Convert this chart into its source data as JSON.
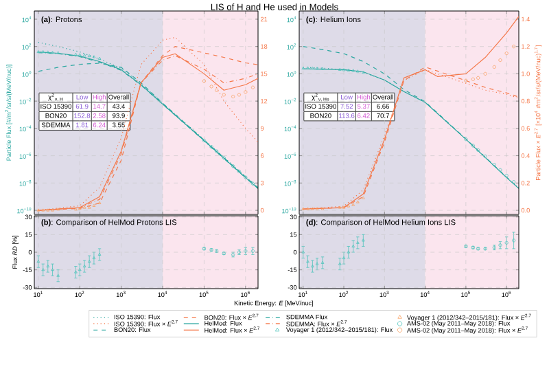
{
  "chart_data": [
    {
      "type": "line",
      "title": "**(a)**: Protons",
      "ylabel": "Particle Flux [#/m$^{2}$/sr/s/(MeV/nuc)]",
      "log": "xy",
      "grid": true,
      "legend": "bottom",
      "tick_labels": "y",
      "xlim": [
        8,
        2000000
      ],
      "ylim": [
        5e-11,
        40000
      ],
      "y2lim": [
        -0.45,
        21.9
      ],
      "xticks": [
        {
          "value": 10,
          "label": null
        },
        {
          "value": 100,
          "label": null
        },
        {
          "value": 1000,
          "label": null
        },
        {
          "value": 10000,
          "label": null
        },
        {
          "value": 100000,
          "label": null
        },
        {
          "value": 1000000,
          "label": null
        }
      ],
      "yticks": [
        {
          "value": 1e-10,
          "label": "10$^{−10}$"
        },
        {
          "value": 1e-08,
          "label": "10$^{−8}$"
        },
        {
          "value": 1e-06,
          "label": "10$^{−6}$"
        },
        {
          "value": 0.0001,
          "label": "10$^{−4}$"
        },
        {
          "value": 0.01,
          "label": "10$^{−2}$"
        },
        {
          "value": 1,
          "label": "10$^{0}$"
        },
        {
          "value": 100,
          "label": "10$^{2}$"
        },
        {
          "value": 10000,
          "label": "10$^{4}$"
        }
      ],
      "y2ticks": [
        0,
        3,
        6,
        9,
        12,
        15,
        18,
        21
      ],
      "bands": [
        {
          "axis": "x",
          "from": 8,
          "to": 10000,
          "color": "#dedbe8"
        },
        {
          "axis": "x",
          "from": 10000,
          "to": 2000000,
          "color": "#fbe5ee"
        }
      ],
      "annotations": [
        "χ$^{2}$$_{ν, H}$",
        "Low",
        "High",
        "Overall",
        "ISO 15390",
        "61.9",
        "14.7",
        "43.4",
        "BON20",
        "152.8",
        "2.58",
        "93.9",
        "SDEMMA",
        "1.81",
        "6.24",
        "3.55"
      ],
      "series": [
        {
          "name": "ISO 15390: Flux",
          "type": "line",
          "line_style": "dotted",
          "color": "#2aa7a0",
          "x": [
            10,
            30,
            100,
            300,
            1000,
            3000,
            10000,
            100000,
            1000000,
            2000000
          ],
          "values": [
            200,
            100,
            40,
            12,
            2.5,
            0.2,
            0.007,
            1.5e-05,
            3e-08,
            5e-09
          ]
        },
        {
          "name": "ISO 15390: Flux × *E*$^{2.7}$",
          "type": "line",
          "axis": "y2",
          "line_style": "dotted",
          "color": "#f5784a",
          "x": [
            10,
            100,
            300,
            1000,
            3000,
            10000,
            20000,
            100000,
            300000,
            1000000,
            2000000
          ],
          "values": [
            0,
            0.5,
            2.5,
            8,
            16,
            18.7,
            19,
            16,
            12,
            9,
            7.5
          ]
        },
        {
          "name": "BON20: Flux",
          "type": "line",
          "line_style": "dashed",
          "color": "#2aa7a0",
          "x": [
            10,
            30,
            100,
            300,
            1000,
            3000,
            10000,
            100000,
            1000000,
            2000000
          ],
          "values": [
            1.5,
            3,
            5,
            6,
            3,
            0.22,
            0.007,
            1.4e-05,
            2.8e-08,
            4.5e-09
          ]
        },
        {
          "name": "BON20: Flux × *E*$^{2.7}$",
          "type": "line",
          "axis": "y2",
          "line_style": "dashed",
          "color": "#f5784a",
          "x": [
            10,
            100,
            300,
            1000,
            3000,
            10000,
            20000,
            100000,
            300000,
            1000000,
            2000000
          ],
          "values": [
            0,
            0.2,
            0.8,
            5.5,
            14,
            17,
            18,
            17.3,
            16.8,
            16.2,
            16
          ]
        },
        {
          "name": "HelMod: Flux",
          "type": "line",
          "line_style": "solid",
          "color": "#2aa7a0",
          "x": [
            10,
            30,
            100,
            300,
            1000,
            3000,
            10000,
            100000,
            1000000,
            2000000
          ],
          "values": [
            40,
            32,
            20,
            8,
            2,
            0.16,
            0.006,
            1.3e-05,
            2.5e-08,
            4e-09
          ]
        },
        {
          "name": "HelMod: Flux × *E*$^{2.7}$",
          "type": "line",
          "axis": "y2",
          "line_style": "solid",
          "color": "#f5784a",
          "x": [
            10,
            100,
            300,
            1000,
            3000,
            10000,
            20000,
            100000,
            300000,
            1000000,
            2000000
          ],
          "values": [
            0,
            0.3,
            1.5,
            6.5,
            14,
            16.8,
            17.2,
            15,
            13.2,
            13.8,
            14.5
          ]
        },
        {
          "name": "SDEMMA Flux",
          "type": "line",
          "line_style": "dashdot",
          "color": "#2aa7a0",
          "x": [
            10,
            30,
            100,
            300,
            1000,
            3000,
            10000,
            100000,
            1000000,
            2000000
          ],
          "values": [
            35,
            30,
            18,
            7,
            1.8,
            0.15,
            0.006,
            1.2e-05,
            2.4e-08,
            4e-09
          ]
        },
        {
          "name": "SDEMMA: Flux × *E*$^{2.7}$",
          "type": "line",
          "axis": "y2",
          "line_style": "dashdot",
          "color": "#f5784a",
          "x": [
            10,
            100,
            300,
            1000,
            3000,
            10000,
            20000,
            100000,
            300000,
            1000000,
            2000000
          ],
          "values": [
            0,
            0.3,
            1.2,
            6.2,
            14,
            16.5,
            17,
            15.5,
            14,
            14.5,
            15
          ]
        },
        {
          "name": "Voyager 1 (2012/342–2015/181): Flux",
          "type": "scatter",
          "marker": "triangle",
          "color": "#4fc4bb",
          "x": [
            10,
            13,
            17,
            22,
            30,
            80,
            100,
            130,
            170,
            220,
            300
          ],
          "values": [
            40,
            40,
            38,
            36,
            34,
            26,
            24,
            22,
            20,
            17,
            13
          ]
        },
        {
          "name": "Voyager 1 (2012/342–2015/181): Flux × *E*$^{2.7}$",
          "type": "scatter",
          "axis": "y2",
          "marker": "triangle",
          "color": "#f9a05f",
          "x": [
            10,
            13,
            17,
            22,
            30,
            80,
            100,
            130,
            170,
            220,
            300
          ],
          "values": [
            0,
            0,
            0,
            0,
            0.1,
            0.1,
            0.2,
            0.3,
            0.3,
            0.5,
            0.8
          ]
        },
        {
          "name": "AMS-02 (May 2011–May 2018): Flux",
          "type": "scatter",
          "marker": "circle",
          "color": "#4fc4bb",
          "x": [
            100000,
            150000,
            200000,
            300000,
            500000,
            700000,
            1000000,
            1500000
          ],
          "values": [
            1.3e-05,
            4.5e-06,
            2.1e-06,
            7e-07,
            1.7e-07,
            7e-08,
            2.6e-08,
            9e-09
          ]
        },
        {
          "name": "AMS-02 (May 2011–May 2018): Flux × *E*$^{2.7}$",
          "type": "scatter",
          "axis": "y2",
          "marker": "circle",
          "color": "#f9a05f",
          "x": [
            100000,
            150000,
            200000,
            300000,
            500000,
            700000,
            1000000,
            1500000
          ],
          "values": [
            14.2,
            13.6,
            13.2,
            12.7,
            12.5,
            12.7,
            13,
            13.5
          ]
        }
      ]
    },
    {
      "type": "scatter",
      "title": "**(b)**: Comparison of HelMod Protons LIS",
      "ylabel": "Flux *RD* [%]",
      "xlabel": "Kinetic Energy: *E* [MeV/nuc]",
      "log": "x",
      "grid": true,
      "xlim": [
        8,
        2000000
      ],
      "ylim": [
        -31,
        31
      ],
      "xticks": [
        {
          "value": 10,
          "label": "10$^{1}$"
        },
        {
          "value": 100,
          "label": "10$^{2}$"
        },
        {
          "value": 1000,
          "label": "10$^{3}$"
        },
        {
          "value": 10000,
          "label": "10$^{4}$"
        },
        {
          "value": 100000,
          "label": "10$^{5}$"
        },
        {
          "value": 1000000,
          "label": "10$^{6}$"
        }
      ],
      "yticks": [
        -30,
        -15,
        0,
        15,
        30
      ],
      "bands": [
        {
          "axis": "x",
          "from": 8,
          "to": 10000,
          "color": "#dedbe8"
        },
        {
          "axis": "x",
          "from": 10000,
          "to": 2000000,
          "color": "#fbe5ee"
        }
      ],
      "series": [
        {
          "marker": "triangle",
          "color": "#4fc4bb",
          "x": [
            10,
            13,
            17,
            22,
            30,
            80,
            100,
            130,
            170,
            220,
            300
          ],
          "values": [
            -8,
            -15,
            -12,
            -15,
            -20,
            -17,
            -15,
            -12,
            -8,
            -5,
            -2
          ],
          "errors": [
            5,
            5,
            5,
            5,
            5,
            5,
            5,
            5,
            5,
            5,
            5
          ]
        },
        {
          "marker": "circle",
          "color": "#4fc4bb",
          "x": [
            100000,
            150000,
            200000,
            300000,
            500000,
            700000,
            1000000,
            1500000
          ],
          "values": [
            3,
            2,
            1,
            -1,
            -2,
            0,
            1,
            1
          ],
          "errors": [
            1,
            1,
            1,
            1,
            2,
            2,
            3,
            3
          ]
        }
      ]
    },
    {
      "type": "line",
      "title": "**(c)**: Helium Ions",
      "y2label": "Particle Flux × *E*$^{2.7}$ [×10$^{4}$ #m$^{2}$/sr/s/(MeV/nuc)$^{1.7}$]",
      "log": "xy",
      "grid": true,
      "tick_labels": "y",
      "xlim": [
        8,
        2000000
      ],
      "ylim": [
        5e-11,
        40000
      ],
      "y2lim": [
        -0.03,
        1.46
      ],
      "xticks": [
        {
          "value": 10,
          "label": null
        },
        {
          "value": 100,
          "label": null
        },
        {
          "value": 1000,
          "label": null
        },
        {
          "value": 10000,
          "label": null
        },
        {
          "value": 100000,
          "label": null
        },
        {
          "value": 1000000,
          "label": null
        }
      ],
      "yticks": [
        {
          "value": 1e-10,
          "label": "10$^{−10}$"
        },
        {
          "value": 1e-08,
          "label": "10$^{−8}$"
        },
        {
          "value": 1e-06,
          "label": "10$^{−6}$"
        },
        {
          "value": 0.0001,
          "label": "10$^{−4}$"
        },
        {
          "value": 0.01,
          "label": "10$^{−2}$"
        },
        {
          "value": 1,
          "label": "10$^{0}$"
        },
        {
          "value": 100,
          "label": "10$^{2}$"
        },
        {
          "value": 10000,
          "label": "10$^{4}$"
        }
      ],
      "y2ticks": [
        {
          "value": 0,
          "label": "0.0"
        },
        0.2,
        0.4,
        0.6,
        0.8,
        {
          "value": 1,
          "label": "1.0"
        },
        1.2,
        1.4
      ],
      "bands": [
        {
          "axis": "x",
          "from": 8,
          "to": 10000,
          "color": "#dedbe8"
        },
        {
          "axis": "x",
          "from": 10000,
          "to": 2000000,
          "color": "#fbe5ee"
        }
      ],
      "annotations": [
        "χ$^{2}$$_{ν, He}$",
        "Low",
        "High",
        "Overall",
        "ISO 15390",
        "7.52",
        "5.37",
        "6.66",
        "BON20",
        "113.6",
        "6.42",
        "70.7"
      ],
      "series": [
        {
          "type": "line",
          "line_style": "dotted",
          "color": "#2aa7a0",
          "x": [
            10,
            30,
            100,
            300,
            1000,
            3000,
            10000,
            100000,
            1000000,
            2000000
          ],
          "values": [
            3,
            2.6,
            2,
            1.3,
            0.35,
            0.05,
            0.008,
            1.6e-05,
            2.6e-08,
            4.2e-09
          ]
        },
        {
          "type": "line",
          "axis": "y2",
          "line_style": "dotted",
          "color": "#f5784a",
          "x": [
            10,
            100,
            300,
            1000,
            3000,
            10000,
            20000,
            100000,
            300000,
            1000000,
            2000000
          ],
          "values": [
            0.01,
            0.03,
            0.15,
            0.55,
            0.95,
            1.03,
            1.0,
            0.93,
            0.88,
            0.85,
            0.82
          ]
        },
        {
          "type": "line",
          "line_style": "dashed",
          "color": "#2aa7a0",
          "x": [
            10,
            30,
            100,
            300,
            1000,
            3000,
            10000,
            100000,
            1000000,
            2000000
          ],
          "values": [
            100,
            60,
            30,
            8,
            1,
            0.07,
            0.009,
            1.7e-05,
            2.7e-08,
            4.3e-09
          ]
        },
        {
          "type": "line",
          "axis": "y2",
          "line_style": "dashed",
          "color": "#f5784a",
          "x": [
            10,
            100,
            300,
            1000,
            3000,
            10000,
            20000,
            100000,
            300000,
            1000000,
            2000000
          ],
          "values": [
            0.01,
            0.02,
            0.1,
            0.5,
            0.95,
            1.05,
            1.02,
            0.95,
            0.9,
            0.86,
            0.83
          ]
        },
        {
          "type": "line",
          "line_style": "solid",
          "color": "#2aa7a0",
          "x": [
            10,
            30,
            100,
            300,
            1000,
            3000,
            10000,
            100000,
            1000000,
            2000000
          ],
          "values": [
            2.3,
            2.2,
            2,
            1.4,
            0.35,
            0.05,
            0.008,
            1.6e-05,
            2.5e-08,
            4e-09
          ]
        },
        {
          "type": "line",
          "axis": "y2",
          "line_style": "solid",
          "color": "#f5784a",
          "x": [
            10,
            100,
            300,
            1000,
            3000,
            10000,
            20000,
            100000,
            300000,
            1000000,
            2000000
          ],
          "values": [
            0.01,
            0.02,
            0.12,
            0.52,
            0.97,
            1.03,
            0.98,
            1.0,
            1.12,
            1.3,
            1.42
          ]
        },
        {
          "type": "scatter",
          "marker": "triangle",
          "color": "#4fc4bb",
          "x": [
            10,
            13,
            17,
            22,
            30,
            80,
            100,
            130,
            170,
            220,
            300
          ],
          "values": [
            2.5,
            2.6,
            2.5,
            2.4,
            2.3,
            2.0,
            1.9,
            1.8,
            1.7,
            1.5,
            1.2
          ]
        },
        {
          "type": "scatter",
          "axis": "y2",
          "marker": "triangle",
          "color": "#f9a05f",
          "x": [
            10,
            13,
            17,
            22,
            30,
            80,
            100,
            130,
            170,
            220,
            300
          ],
          "values": [
            0.01,
            0.01,
            0.01,
            0.01,
            0.01,
            0.02,
            0.02,
            0.03,
            0.04,
            0.06,
            0.09
          ]
        },
        {
          "type": "scatter",
          "marker": "circle",
          "color": "#4fc4bb",
          "x": [
            100000,
            150000,
            200000,
            300000,
            500000,
            700000,
            1000000,
            1500000
          ],
          "values": [
            1.6e-05,
            5.5e-06,
            2.6e-06,
            9e-07,
            2.2e-07,
            9e-08,
            3.5e-08,
            1.2e-08
          ]
        },
        {
          "type": "scatter",
          "axis": "y2",
          "marker": "circle",
          "color": "#f9a05f",
          "x": [
            100000,
            150000,
            200000,
            300000,
            500000,
            700000,
            1000000,
            1500000
          ],
          "values": [
            0.95,
            0.96,
            0.97,
            1.0,
            1.05,
            1.1,
            1.15,
            1.2
          ]
        }
      ]
    },
    {
      "type": "scatter",
      "title": "**(d)**: Comparison of HelMod Helium Ions LIS",
      "log": "x",
      "grid": true,
      "xlim": [
        8,
        2000000
      ],
      "ylim": [
        -31,
        31
      ],
      "xticks": [
        {
          "value": 10,
          "label": "10$^{1}$"
        },
        {
          "value": 100,
          "label": "10$^{2}$"
        },
        {
          "value": 1000,
          "label": "10$^{3}$"
        },
        {
          "value": 10000,
          "label": "10$^{4}$"
        },
        {
          "value": 100000,
          "label": "10$^{5}$"
        },
        {
          "value": 1000000,
          "label": "10$^{6}$"
        }
      ],
      "yticks": [
        -30,
        -15,
        0,
        15,
        30
      ],
      "bands": [
        {
          "axis": "x",
          "from": 8,
          "to": 10000,
          "color": "#dedbe8"
        },
        {
          "axis": "x",
          "from": 10000,
          "to": 2000000,
          "color": "#fbe5ee"
        }
      ],
      "series": [
        {
          "marker": "triangle",
          "color": "#4fc4bb",
          "x": [
            10,
            13,
            17,
            22,
            30,
            80,
            100,
            130,
            170,
            220,
            300
          ],
          "values": [
            0,
            -8,
            -12,
            -10,
            -9,
            -10,
            -5,
            0,
            5,
            8,
            10
          ],
          "errors": [
            5,
            5,
            5,
            5,
            5,
            5,
            5,
            5,
            5,
            5,
            5
          ]
        },
        {
          "marker": "circle",
          "color": "#4fc4bb",
          "x": [
            100000,
            150000,
            200000,
            300000,
            500000,
            700000,
            1000000,
            1500000
          ],
          "values": [
            5,
            4,
            3,
            3,
            4,
            6,
            8,
            10
          ],
          "errors": [
            1,
            1,
            1,
            1,
            2,
            3,
            5,
            7
          ]
        }
      ]
    },
    {
      "type": "other",
      "title": "LIS of H and He used in Models"
    }
  ]
}
